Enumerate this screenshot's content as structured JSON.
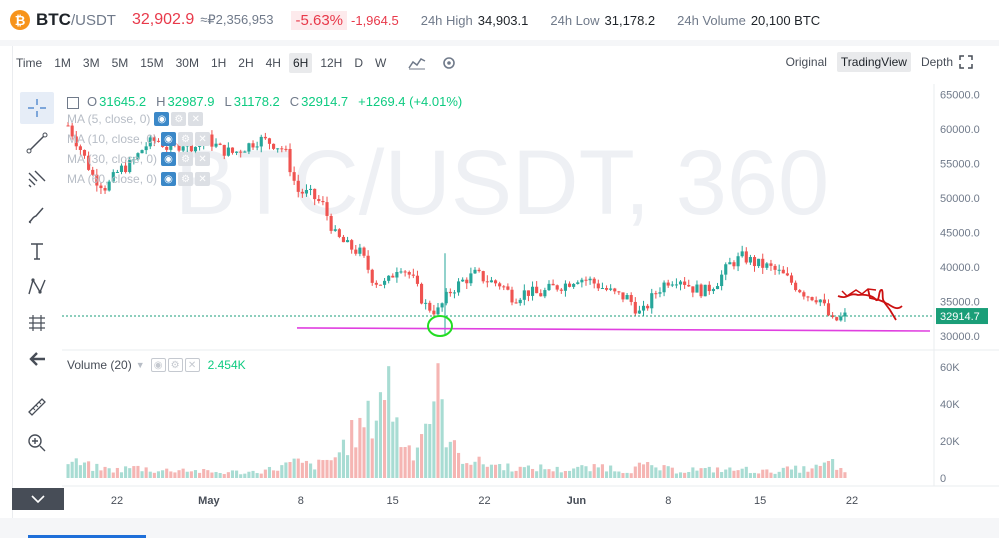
{
  "ticker": {
    "coin_symbol": "₿",
    "base": "BTC",
    "quote": "/USDT",
    "last_price": "32,902.9",
    "fiat_price": "≈₽2,356,953",
    "change_pct": "-5.63%",
    "change_abs": "-1,964.5",
    "high_label": "24h High",
    "high_value": "34,903.1",
    "low_label": "24h Low",
    "low_value": "31,178.2",
    "volume_label": "24h Volume",
    "volume_value": "20,100 BTC"
  },
  "toolbar": {
    "timeframes": [
      "Time",
      "1M",
      "3M",
      "5M",
      "15M",
      "30M",
      "1H",
      "2H",
      "4H",
      "6H",
      "12H",
      "D",
      "W"
    ],
    "active_timeframe": "6H",
    "views": [
      "Original",
      "TradingView",
      "Depth"
    ],
    "active_view": "TradingView"
  },
  "legend": {
    "o_label": "O",
    "o_value": "31645.2",
    "h_label": "H",
    "h_value": "32987.9",
    "l_label": "L",
    "l_value": "31178.2",
    "c_label": "C",
    "c_value": "32914.7",
    "change": "+1269.4 (+4.01%)",
    "ma": [
      "MA (5, close, 0)",
      "MA (10, close, 0)",
      "MA (30, close, 0)",
      "MA (60, close, 0)"
    ]
  },
  "volume_legend": {
    "label": "Volume (20)",
    "value": "2.454K"
  },
  "colors": {
    "up": "#26a69a",
    "down": "#ef5350",
    "up_text": "#0ecb81",
    "down_text": "#e8394a",
    "pink_line": "#e040e0",
    "green_circle": "#22dd22",
    "red_drawing": "#cc1111",
    "price_tag": "#1a9e78"
  },
  "chart_data": {
    "type": "candlestick",
    "watermark": "BTC/USDT, 360",
    "x_tick_labels": [
      "22",
      "May",
      "8",
      "15",
      "22",
      "Jun",
      "8",
      "15",
      "22"
    ],
    "price_axis": {
      "labels": [
        "65000.0",
        "60000.0",
        "55000.0",
        "50000.0",
        "45000.0",
        "40000.0",
        "35000.0",
        "30000.0"
      ],
      "ylim": [
        28000,
        66500
      ]
    },
    "current_price_tag": "32914.7",
    "support_line_price": 30900,
    "volume_axis": {
      "labels": [
        "60K",
        "40K",
        "20K",
        "0"
      ],
      "ylim": [
        0,
        65000
      ]
    },
    "close_path": [
      [
        0,
        60500
      ],
      [
        1,
        57000
      ],
      [
        2,
        53000
      ],
      [
        3,
        51500
      ],
      [
        4,
        54000
      ],
      [
        5,
        55000
      ],
      [
        6,
        57500
      ],
      [
        7,
        58500
      ],
      [
        8,
        57000
      ],
      [
        9,
        58000
      ],
      [
        10,
        57500
      ],
      [
        11,
        58500
      ],
      [
        12,
        57000
      ],
      [
        13,
        56500
      ],
      [
        14,
        57500
      ],
      [
        15,
        58500
      ],
      [
        16,
        58000
      ],
      [
        17,
        57000
      ],
      [
        18,
        51000
      ],
      [
        19,
        50500
      ],
      [
        20,
        49000
      ],
      [
        21,
        44500
      ],
      [
        22,
        43000
      ],
      [
        23,
        42000
      ],
      [
        24,
        38000
      ],
      [
        25,
        37500
      ],
      [
        26,
        40500
      ],
      [
        27,
        38500
      ],
      [
        28,
        34500
      ],
      [
        29,
        33500
      ],
      [
        30,
        36500
      ],
      [
        31,
        38000
      ],
      [
        32,
        39000
      ],
      [
        33,
        38000
      ],
      [
        34,
        37500
      ],
      [
        35,
        35500
      ],
      [
        36,
        36500
      ],
      [
        37,
        36000
      ],
      [
        38,
        37000
      ],
      [
        39,
        37500
      ],
      [
        40,
        38500
      ],
      [
        41,
        38000
      ],
      [
        42,
        37000
      ],
      [
        43,
        36000
      ],
      [
        44,
        35500
      ],
      [
        45,
        33000
      ],
      [
        46,
        36000
      ],
      [
        47,
        38000
      ],
      [
        48,
        38500
      ],
      [
        49,
        37000
      ],
      [
        50,
        36500
      ],
      [
        51,
        38000
      ],
      [
        52,
        40500
      ],
      [
        53,
        41500
      ],
      [
        54,
        40500
      ],
      [
        55,
        40000
      ],
      [
        56,
        39000
      ],
      [
        57,
        37500
      ],
      [
        58,
        36000
      ],
      [
        59,
        35500
      ],
      [
        60,
        32000
      ],
      [
        61,
        32900
      ]
    ],
    "volume_bars": [
      [
        0,
        9000
      ],
      [
        1,
        8000
      ],
      [
        2,
        6000
      ],
      [
        3,
        5000
      ],
      [
        4,
        4500
      ],
      [
        5,
        6000
      ],
      [
        6,
        5500
      ],
      [
        7,
        4000
      ],
      [
        8,
        4500
      ],
      [
        9,
        5000
      ],
      [
        10,
        4000
      ],
      [
        11,
        3500
      ],
      [
        12,
        3000
      ],
      [
        13,
        3500
      ],
      [
        14,
        3000
      ],
      [
        15,
        4000
      ],
      [
        16,
        5000
      ],
      [
        17,
        7000
      ],
      [
        18,
        9000
      ],
      [
        19,
        7000
      ],
      [
        20,
        8000
      ],
      [
        21,
        12000
      ],
      [
        22,
        22000
      ],
      [
        23,
        28000
      ],
      [
        24,
        35000
      ],
      [
        25,
        58000
      ],
      [
        26,
        24000
      ],
      [
        27,
        15000
      ],
      [
        28,
        30000
      ],
      [
        29,
        50000
      ],
      [
        30,
        18000
      ],
      [
        31,
        12000
      ],
      [
        32,
        9000
      ],
      [
        33,
        8000
      ],
      [
        34,
        7000
      ],
      [
        35,
        6000
      ],
      [
        36,
        5000
      ],
      [
        37,
        6000
      ],
      [
        38,
        5000
      ],
      [
        39,
        4500
      ],
      [
        40,
        6000
      ],
      [
        41,
        5000
      ],
      [
        42,
        7000
      ],
      [
        43,
        5000
      ],
      [
        44,
        4000
      ],
      [
        45,
        7000
      ],
      [
        46,
        6000
      ],
      [
        47,
        5000
      ],
      [
        48,
        4000
      ],
      [
        49,
        5000
      ],
      [
        50,
        4500
      ],
      [
        51,
        5000
      ],
      [
        52,
        4500
      ],
      [
        53,
        5000
      ],
      [
        54,
        4000
      ],
      [
        55,
        3500
      ],
      [
        56,
        4500
      ],
      [
        57,
        5000
      ],
      [
        58,
        5000
      ],
      [
        59,
        6000
      ],
      [
        60,
        9000
      ],
      [
        61,
        2454
      ]
    ]
  }
}
